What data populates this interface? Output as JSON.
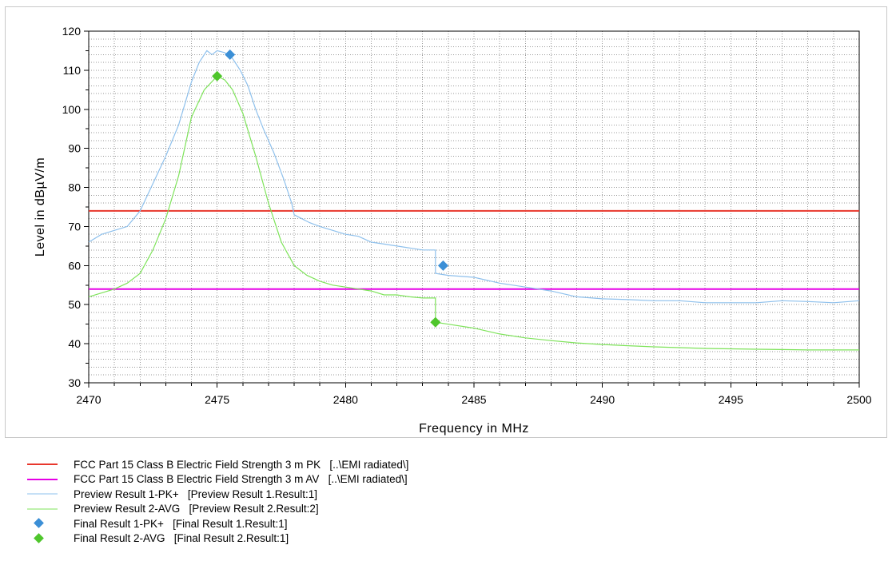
{
  "colors": {
    "pk_limit": "#e8372c",
    "av_limit": "#e600e6",
    "preview_pk": "#8ec0ec",
    "preview_avg": "#7ee35a",
    "final_pk": "#3b8fd6",
    "final_avg": "#4fc62c",
    "grid": "#9a9a9a"
  },
  "chart_data": {
    "type": "line",
    "xlabel": "Frequency in MHz",
    "ylabel": "Level in dBµV/m",
    "xlim": [
      2470,
      2500
    ],
    "ylim": [
      30,
      120
    ],
    "x_ticks": [
      "2470",
      "2475",
      "2480",
      "2485",
      "2490",
      "2495",
      "2500"
    ],
    "y_ticks": [
      "30",
      "40",
      "50",
      "60",
      "70",
      "80",
      "90",
      "100",
      "110",
      "120"
    ],
    "grid": true,
    "series": [
      {
        "name": "FCC Part 15 Class B Electric Field Strength 3 m PK",
        "legend_text": "FCC Part 15 Class B Electric Field Strength 3 m PK   [..\\EMI radiated\\]",
        "kind": "limit",
        "color_key": "pk_limit",
        "x": [
          2470,
          2500
        ],
        "y": [
          74,
          74
        ]
      },
      {
        "name": "FCC Part 15 Class B Electric Field Strength 3 m AV",
        "legend_text": "FCC Part 15 Class B Electric Field Strength 3 m AV   [..\\EMI radiated\\]",
        "kind": "limit",
        "color_key": "av_limit",
        "x": [
          2470,
          2500
        ],
        "y": [
          54,
          54
        ]
      },
      {
        "name": "Preview Result 1-PK+",
        "legend_text": "Preview Result 1-PK+   [Preview Result 1.Result:1]",
        "kind": "trace",
        "color_key": "preview_pk",
        "x": [
          2470,
          2470.5,
          2471,
          2471.5,
          2472,
          2472.5,
          2473,
          2473.5,
          2474,
          2474.3,
          2474.6,
          2474.8,
          2475,
          2475.3,
          2475.6,
          2475.9,
          2476.2,
          2476.5,
          2476.8,
          2477.2,
          2477.6,
          2477.9,
          2478,
          2478.3,
          2478.6,
          2479,
          2479.5,
          2480,
          2480.5,
          2481,
          2481.5,
          2482,
          2482.5,
          2483,
          2483.5,
          2483.5,
          2484,
          2485,
          2486,
          2487,
          2488,
          2489,
          2490,
          2491,
          2492,
          2493,
          2494,
          2495,
          2496,
          2497,
          2498,
          2499,
          2500
        ],
        "y": [
          66,
          68,
          69,
          70,
          74,
          81,
          88,
          96,
          107,
          112,
          115,
          114,
          115,
          114.5,
          113,
          110,
          106,
          100,
          95,
          89,
          82,
          76,
          73,
          72,
          71,
          70,
          69,
          68,
          67.5,
          66,
          65.5,
          65,
          64.5,
          64,
          64,
          58,
          57.5,
          57,
          55.5,
          54.5,
          53.5,
          52,
          51.5,
          51.3,
          51,
          51,
          50.5,
          50.5,
          50.5,
          51,
          50.8,
          50.5,
          51
        ]
      },
      {
        "name": "Preview Result 2-AVG",
        "legend_text": "Preview Result 2-AVG   [Preview Result 2.Result:2]",
        "kind": "trace",
        "color_key": "preview_avg",
        "x": [
          2470,
          2470.5,
          2471,
          2471.5,
          2472,
          2472.5,
          2473,
          2473.5,
          2474,
          2474.5,
          2475,
          2475.3,
          2475.6,
          2476,
          2476.5,
          2477,
          2477.5,
          2478,
          2478.5,
          2479,
          2479.5,
          2480,
          2480.5,
          2481,
          2481.5,
          2482,
          2482.5,
          2483,
          2483.5,
          2483.5,
          2484,
          2485,
          2486,
          2487,
          2488,
          2489,
          2490,
          2491,
          2492,
          2493,
          2494,
          2495,
          2496,
          2497,
          2498,
          2499,
          2500
        ],
        "y": [
          52,
          53,
          54,
          55.5,
          58,
          64,
          72,
          83,
          98,
          105,
          108.5,
          107.5,
          105,
          99,
          88,
          76,
          66,
          60,
          57.5,
          56,
          55,
          54.5,
          54,
          53.5,
          52.5,
          52.5,
          52,
          51.7,
          51.7,
          45.5,
          45,
          44,
          42.5,
          41.5,
          40.8,
          40.2,
          39.8,
          39.5,
          39.2,
          39,
          38.8,
          38.7,
          38.6,
          38.5,
          38.4,
          38.4,
          38.4
        ]
      },
      {
        "name": "Final Result 1-PK+",
        "legend_text": "Final Result 1-PK+   [Final Result 1.Result:1]",
        "kind": "marker",
        "color_key": "final_pk",
        "x": [
          2475.5,
          2483.8
        ],
        "y": [
          114,
          60
        ]
      },
      {
        "name": "Final Result 2-AVG",
        "legend_text": "Final Result 2-AVG   [Final Result 2.Result:1]",
        "kind": "marker",
        "color_key": "final_avg",
        "x": [
          2475,
          2483.5
        ],
        "y": [
          108.5,
          45.5
        ]
      }
    ]
  }
}
